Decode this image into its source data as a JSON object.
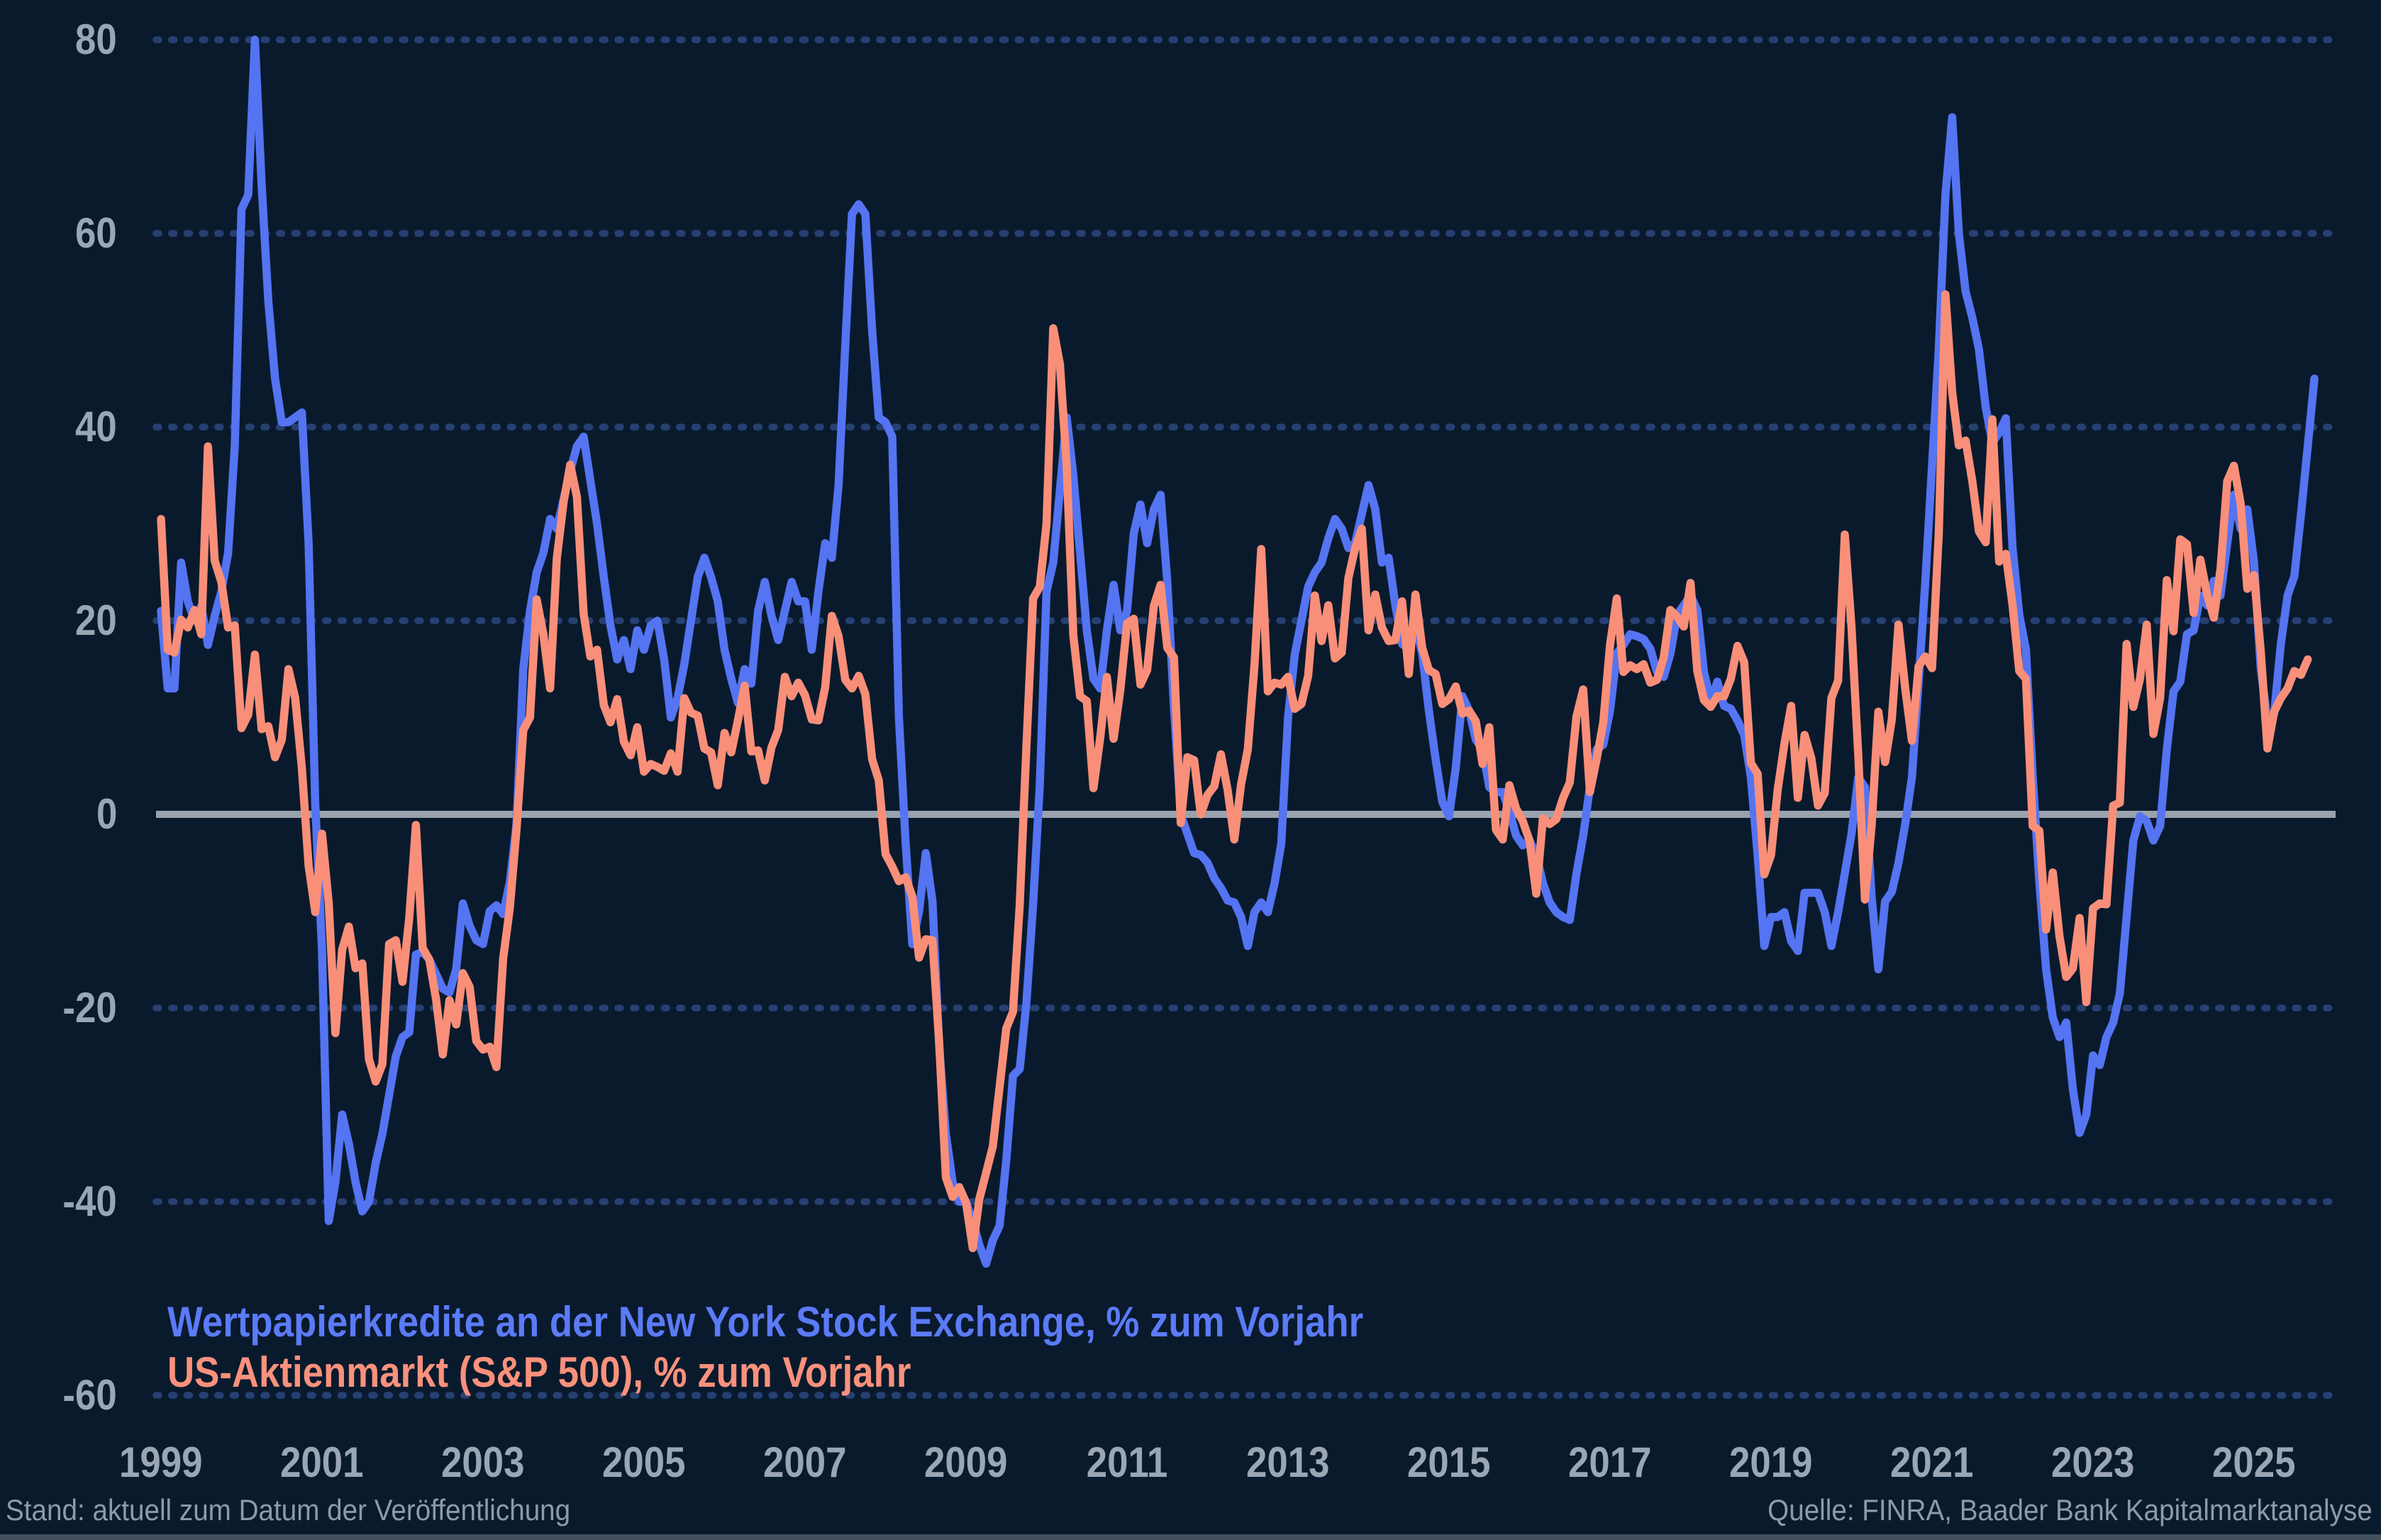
{
  "legend": {
    "line1": "Wertpapierkredite an der New York Stock Exchange, % zum Vorjahr",
    "line2": "US-Aktienmarkt (S&P 500), % zum Vorjahr"
  },
  "footer": {
    "left": "Stand: aktuell zum Datum der Veröffentlichung",
    "right": "Quelle: FINRA, Baader Bank Kapitalmarktanalyse"
  },
  "colors": {
    "background": "#0a1a2d",
    "series_margin_debt": "#5474f2",
    "series_sp500": "#f98f79",
    "grid_dots": "#274072",
    "zero_line": "#9aa2ad",
    "axis_text": "#9aa6b4",
    "footer_text": "#8e9aa7"
  },
  "chart_data": {
    "type": "line",
    "title": "",
    "xlabel": "",
    "ylabel": "",
    "ylim": [
      -60,
      80
    ],
    "xlim": [
      1999,
      2026
    ],
    "grid": "dotted horizontal lines at ±20/±40/±60/80, solid gray line at 0",
    "legend_position": "bottom-left inside plot",
    "y_axis": {
      "ticks": [
        {
          "v": 80,
          "label": "80"
        },
        {
          "v": 60,
          "label": "60"
        },
        {
          "v": 40,
          "label": "40"
        },
        {
          "v": 20,
          "label": "20"
        },
        {
          "v": 0,
          "label": "0"
        },
        {
          "v": -20,
          "label": "-20"
        },
        {
          "v": -40,
          "label": "-40"
        },
        {
          "v": -60,
          "label": "-60"
        }
      ]
    },
    "x_axis": {
      "ticks": [
        {
          "v": 1999,
          "label": "1999"
        },
        {
          "v": 2001,
          "label": "2001"
        },
        {
          "v": 2003,
          "label": "2003"
        },
        {
          "v": 2005,
          "label": "2005"
        },
        {
          "v": 2007,
          "label": "2007"
        },
        {
          "v": 2009,
          "label": "2009"
        },
        {
          "v": 2011,
          "label": "2011"
        },
        {
          "v": 2013,
          "label": "2013"
        },
        {
          "v": 2015,
          "label": "2015"
        },
        {
          "v": 2017,
          "label": "2017"
        },
        {
          "v": 2019,
          "label": "2019"
        },
        {
          "v": 2021,
          "label": "2021"
        },
        {
          "v": 2023,
          "label": "2023"
        },
        {
          "v": 2025,
          "label": "2025"
        }
      ]
    },
    "series": [
      {
        "name": "Wertpapierkredite an der New York Stock Exchange, % zum Vorjahr",
        "color": "#5474f2",
        "start_year": 1999.0,
        "step_months": 1,
        "values": [
          21,
          13,
          13,
          26,
          22,
          20,
          21.5,
          17.5,
          20.5,
          23,
          27,
          38,
          62.5,
          64,
          80,
          65,
          53,
          45,
          40.5,
          40.5,
          41,
          41.5,
          28,
          1,
          -14,
          -42,
          -38,
          -31,
          -34,
          -38,
          -41,
          -40,
          -36,
          -33,
          -29,
          -25,
          -23,
          -22.5,
          -14.5,
          -14.2,
          -15,
          -16.5,
          -18,
          -18.4,
          -16,
          -9.2,
          -11.5,
          -13,
          -13.4,
          -10,
          -9.4,
          -10.3,
          -7,
          -1,
          15,
          21,
          25,
          27,
          30.5,
          29.5,
          32.5,
          35.5,
          38,
          39,
          34.5,
          30,
          24.5,
          19.5,
          16,
          18,
          15,
          19,
          17,
          19.5,
          20,
          16,
          10,
          12,
          15.5,
          20,
          24.5,
          26.5,
          24.5,
          22,
          17,
          14,
          11.5,
          15,
          13.5,
          21,
          24,
          20.5,
          18,
          21,
          24,
          22,
          22,
          17,
          23,
          28,
          26.5,
          34,
          48.5,
          62,
          63,
          62,
          50,
          41,
          40.5,
          39,
          10,
          -3,
          -13.4,
          -10,
          -4,
          -9,
          -24,
          -33,
          -38,
          -40,
          -40,
          -42,
          -44.5,
          -46.4,
          -44,
          -42.5,
          -35.7,
          -27,
          -26.3,
          -19.5,
          -9.3,
          3,
          23,
          26,
          33.5,
          41,
          35,
          27,
          19,
          14,
          13,
          19,
          23.7,
          19,
          21,
          29,
          32,
          28,
          31.5,
          33,
          24,
          11,
          0,
          -2,
          -4,
          -4.2,
          -5,
          -6.6,
          -7.6,
          -8.9,
          -9.1,
          -10.6,
          -13.6,
          -10.1,
          -9.1,
          -10.1,
          -7.1,
          -3,
          10,
          16.5,
          20,
          23.5,
          25,
          26,
          28.5,
          30.5,
          29.5,
          27.5,
          28,
          31,
          34,
          31.5,
          26,
          26.5,
          21.6,
          17.6,
          17.1,
          19.6,
          16.6,
          10.7,
          5.7,
          1.3,
          -0.2,
          4.8,
          12.2,
          10.7,
          7.7,
          6.7,
          2.8,
          2.3,
          2.3,
          0.3,
          -2.2,
          -3.2,
          -2.7,
          -4.2,
          -7.1,
          -9.1,
          -10.1,
          -10.6,
          -10.9,
          -6.1,
          -2.2,
          2.8,
          6.7,
          7.2,
          10.7,
          16.6,
          17.5,
          18.6,
          18.4,
          18.1,
          17.1,
          14.7,
          14.2,
          16.6,
          20.6,
          21.6,
          22.6,
          21.1,
          14.7,
          11.7,
          13.7,
          11.2,
          10.9,
          9.7,
          8.2,
          3.8,
          -4.2,
          -13.6,
          -10.6,
          -10.6,
          -10.1,
          -13.1,
          -14.1,
          -8.1,
          -8.1,
          -8.1,
          -10.1,
          -13.6,
          -10.1,
          -6.1,
          -2,
          3.8,
          2.8,
          -8.6,
          -16,
          -9,
          -8,
          -5,
          -1,
          3.8,
          13.7,
          24,
          36,
          48,
          64,
          72,
          60,
          54,
          51.3,
          48,
          42,
          38.4,
          39.4,
          40.9,
          27.5,
          20.6,
          17,
          4,
          -7,
          -16,
          -21,
          -23,
          -21.5,
          -28.4,
          -32.9,
          -31,
          -24.9,
          -25.9,
          -23,
          -21.5,
          -18.5,
          -10.6,
          -2.7,
          -0.2,
          -0.7,
          -2.7,
          -1.2,
          6.7,
          12.7,
          13.7,
          18.6,
          19,
          22.6,
          21.6,
          24.1,
          22.6,
          28,
          33,
          29.5,
          31.5,
          26,
          15,
          9.7,
          10.4,
          17.6,
          22.6,
          24.6,
          31,
          38,
          45
        ]
      },
      {
        "name": "US-Aktienmarkt (S&P 500), % zum Vorjahr",
        "color": "#f98f79",
        "start_year": 1999.0,
        "step_months": 1,
        "values": [
          30.5,
          17,
          16.7,
          20.1,
          19.3,
          21.1,
          18.6,
          38,
          26.2,
          24,
          19.3,
          19.5,
          8.9,
          10.3,
          16.5,
          8.8,
          9.1,
          5.9,
          7.7,
          15,
          12,
          4.8,
          -5.3,
          -10.1,
          -2,
          -9.2,
          -22.6,
          -14,
          -11.6,
          -15.9,
          -15.4,
          -25.3,
          -27.6,
          -25.8,
          -13.4,
          -13,
          -17.3,
          -10.7,
          -1.1,
          -13.8,
          -15,
          -19.1,
          -24.8,
          -19.2,
          -21.7,
          -16.4,
          -17.8,
          -23.4,
          -24.3,
          -24,
          -26.1,
          -14.9,
          -9.7,
          -1.5,
          8.7,
          10,
          22.2,
          18.6,
          13,
          26.4,
          32.2,
          36.1,
          32.8,
          20.7,
          16.3,
          17,
          11.3,
          9.5,
          11.9,
          7.5,
          6.1,
          9,
          4.4,
          5.2,
          4.9,
          4.5,
          6.3,
          4.4,
          12,
          10.5,
          10.2,
          6.8,
          6.4,
          3,
          8.4,
          6.4,
          9.7,
          13.3,
          6.5,
          6.6,
          3.5,
          6.9,
          8.7,
          14.2,
          12.2,
          13.6,
          12.3,
          9.8,
          9.7,
          13.1,
          20.5,
          18.4,
          13.9,
          13,
          14.3,
          12.4,
          5.7,
          3.5,
          -4.1,
          -5.4,
          -6.9,
          -6.5,
          -8.5,
          -14.8,
          -12.9,
          -13,
          -23.6,
          -37.5,
          -39.5,
          -38.5,
          -40.1,
          -44.8,
          -39.7,
          -37,
          -34.3,
          -28.2,
          -22.1,
          -20.4,
          -9.4,
          6.9,
          22.3,
          23.5,
          30,
          50.2,
          46.5,
          36,
          18.5,
          12.2,
          11.7,
          2.7,
          7.9,
          14.2,
          7.8,
          12.8,
          19.7,
          20.2,
          13.4,
          14.9,
          21.5,
          23.7,
          17.2,
          16.2,
          -0.9,
          5.9,
          5.6,
          0,
          2,
          2.9,
          6.2,
          2.5,
          -2.6,
          3.1,
          6.7,
          15.4,
          27.4,
          12.7,
          13.6,
          13.4,
          14.2,
          10.9,
          11.4,
          14.3,
          22.6,
          17.9,
          21.6,
          16.1,
          16.7,
          24.4,
          27.5,
          29.5,
          19,
          22.7,
          19.3,
          17.9,
          18,
          22,
          14.5,
          22.7,
          17.2,
          14.9,
          14.5,
          11.4,
          11.9,
          13.2,
          10.4,
          10.7,
          9.6,
          5.2,
          9,
          -1.6,
          -2.6,
          3,
          0.6,
          -0.7,
          -2.7,
          -8.2,
          -0.4,
          -1,
          -0.5,
          1.7,
          3.3,
          10.1,
          12.9,
          2.3,
          5.7,
          9.5,
          17.5,
          22.3,
          14.7,
          15.4,
          15,
          15.5,
          13.6,
          13.9,
          16.2,
          21.1,
          20.4,
          19.4,
          23.9,
          14.8,
          11.8,
          11.1,
          12.2,
          12.2,
          14,
          17.4,
          15.7,
          5.3,
          4.2,
          -6.2,
          -4.2,
          2.6,
          7.3,
          11.2,
          1.7,
          8.2,
          5.8,
          0.9,
          2.2,
          12,
          13.8,
          28.9,
          19.3,
          6.1,
          -8.8,
          -1.1,
          10.6,
          5.4,
          9.8,
          19.6,
          13,
          7.6,
          15.3,
          16.3,
          15.1,
          29,
          53.7,
          43.6,
          38.1,
          38.6,
          34.4,
          29.2,
          28.1,
          40.8,
          26.1,
          26.9,
          21.6,
          14.8,
          14,
          -1.2,
          -1.7,
          -11.9,
          -6,
          -12.6,
          -16.8,
          -15.9,
          -10.7,
          -19.4,
          -9.7,
          -9.2,
          -9.3,
          0.9,
          1.2,
          17.6,
          11.1,
          14,
          19.6,
          8.3,
          12,
          24.2,
          18.9,
          28.4,
          27.9,
          20.8,
          26.3,
          22.7,
          20.3,
          25.3,
          34.4,
          36,
          32.1,
          23.3,
          24.7,
          16.8,
          6.8,
          10.6,
          12,
          13,
          14.8,
          14.4,
          16
        ]
      }
    ]
  }
}
